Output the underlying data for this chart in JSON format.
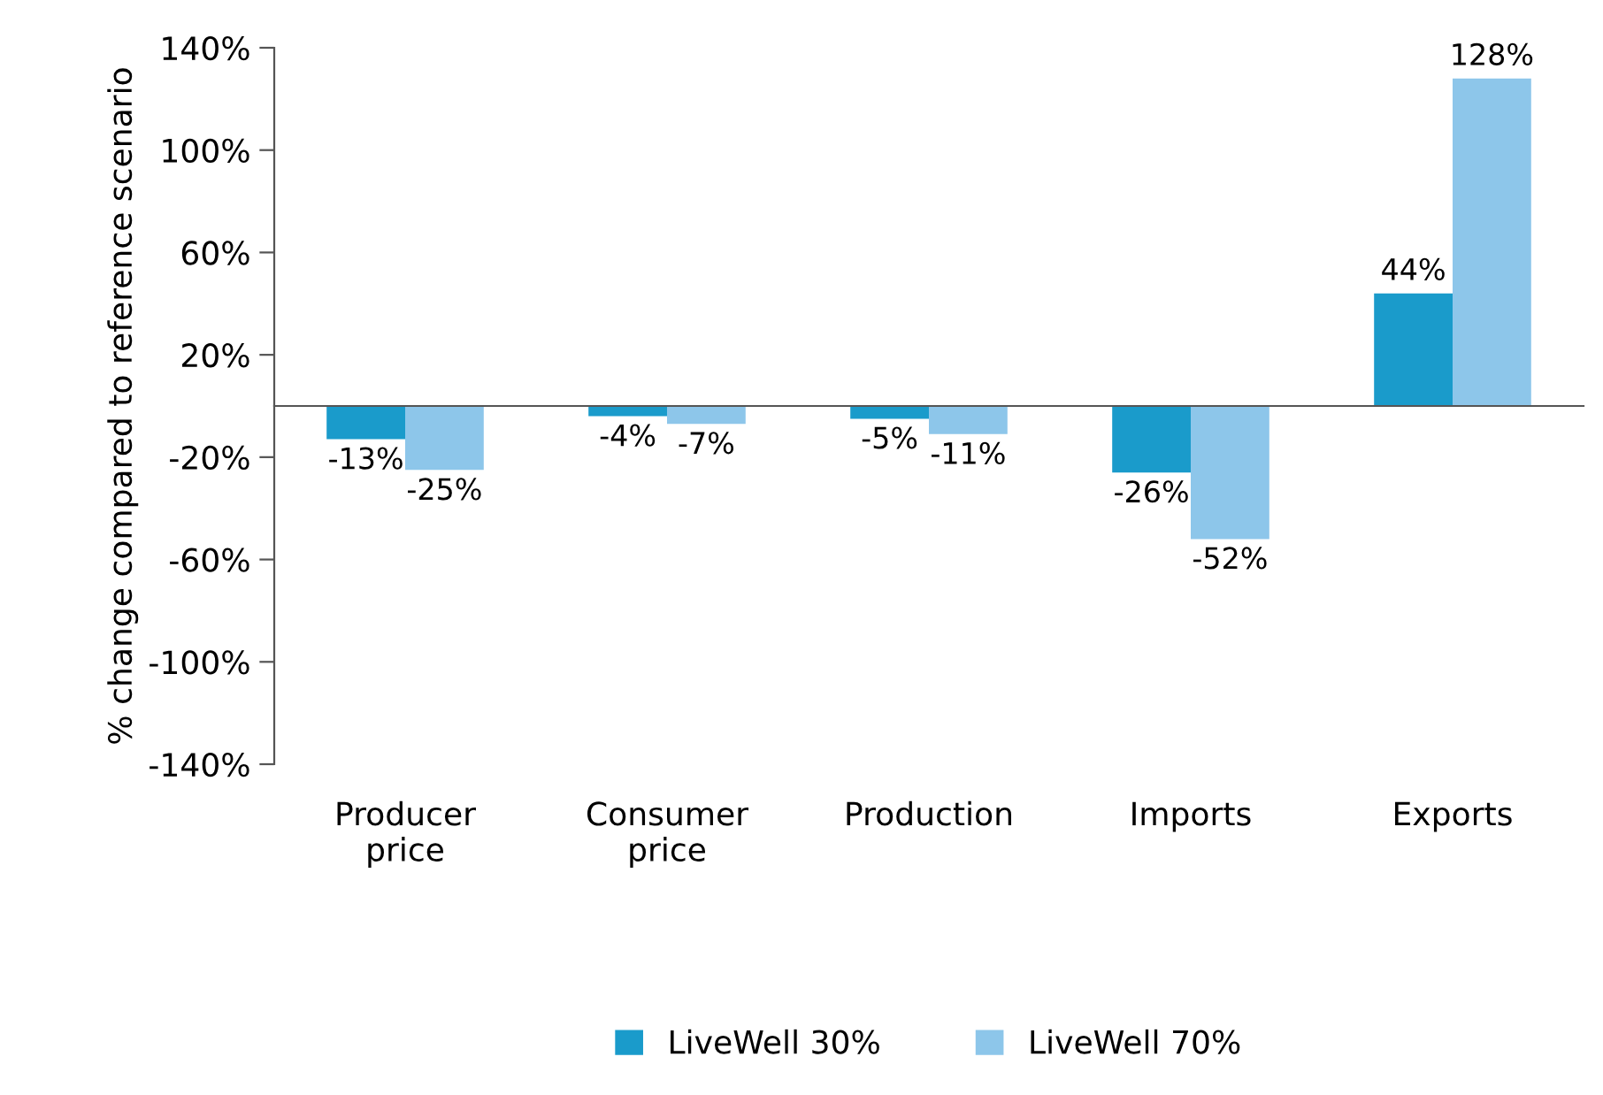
{
  "chart_data": {
    "type": "bar",
    "ylabel": "% change compared to reference scenario",
    "categories": [
      "Producer\nprice",
      "Consumer\nprice",
      "Production",
      "Imports",
      "Exports"
    ],
    "series": [
      {
        "name": "LiveWell 30%",
        "color": "#1a9bcb",
        "values": [
          -13,
          -4,
          -5,
          -26,
          44
        ],
        "value_labels": [
          "-13%",
          "-4%",
          "-5%",
          "-26%",
          "44%"
        ]
      },
      {
        "name": "LiveWell 70%",
        "color": "#8dc6ea",
        "values": [
          -25,
          -7,
          -11,
          -52,
          128
        ],
        "value_labels": [
          "-25%",
          "-7%",
          "-11%",
          "-52%",
          "128%"
        ]
      }
    ],
    "ylim": [
      -140,
      140
    ],
    "yticks": [
      {
        "value": -140,
        "label": "-140%"
      },
      {
        "value": -100,
        "label": "-100%"
      },
      {
        "value": -60,
        "label": "-60%"
      },
      {
        "value": -20,
        "label": "-20%"
      },
      {
        "value": 20,
        "label": "20%"
      },
      {
        "value": 60,
        "label": "60%"
      },
      {
        "value": 100,
        "label": "100%"
      },
      {
        "value": 140,
        "label": "140%"
      }
    ],
    "grid": false,
    "legend": "bottom"
  }
}
